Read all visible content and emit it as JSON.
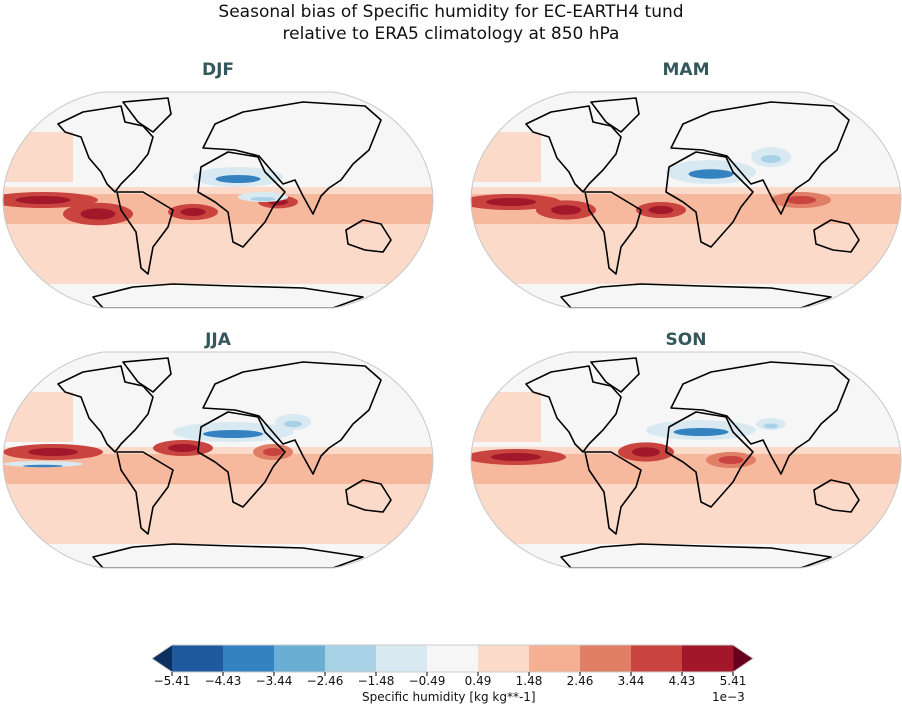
{
  "title_line1": "Seasonal bias of Specific humidity for EC-EARTH4 tund",
  "title_line2": "relative to ERA5 climatology at 850 hPa",
  "panels": [
    {
      "season": "DJF"
    },
    {
      "season": "MAM"
    },
    {
      "season": "JJA"
    },
    {
      "season": "SON"
    }
  ],
  "chart_data": {
    "type": "heatmap",
    "colorbar": {
      "label": "Specific humidity [kg kg**-1]",
      "scale_factor": "1e−3",
      "ticks": [
        "−5.41",
        "−4.43",
        "−3.44",
        "−2.46",
        "−1.48",
        "−0.49",
        "0.49",
        "1.48",
        "2.46",
        "3.44",
        "4.43",
        "5.41"
      ],
      "colors": [
        "#1f5a9e",
        "#3582c0",
        "#6aaed4",
        "#a9d1e6",
        "#d9e9f1",
        "#f6f6f6",
        "#fbdac9",
        "#f5b093",
        "#e17e66",
        "#c9433f",
        "#a3172b"
      ],
      "under_color": "#0b2f5e",
      "over_color": "#67001f",
      "extend": "both"
    }
  }
}
